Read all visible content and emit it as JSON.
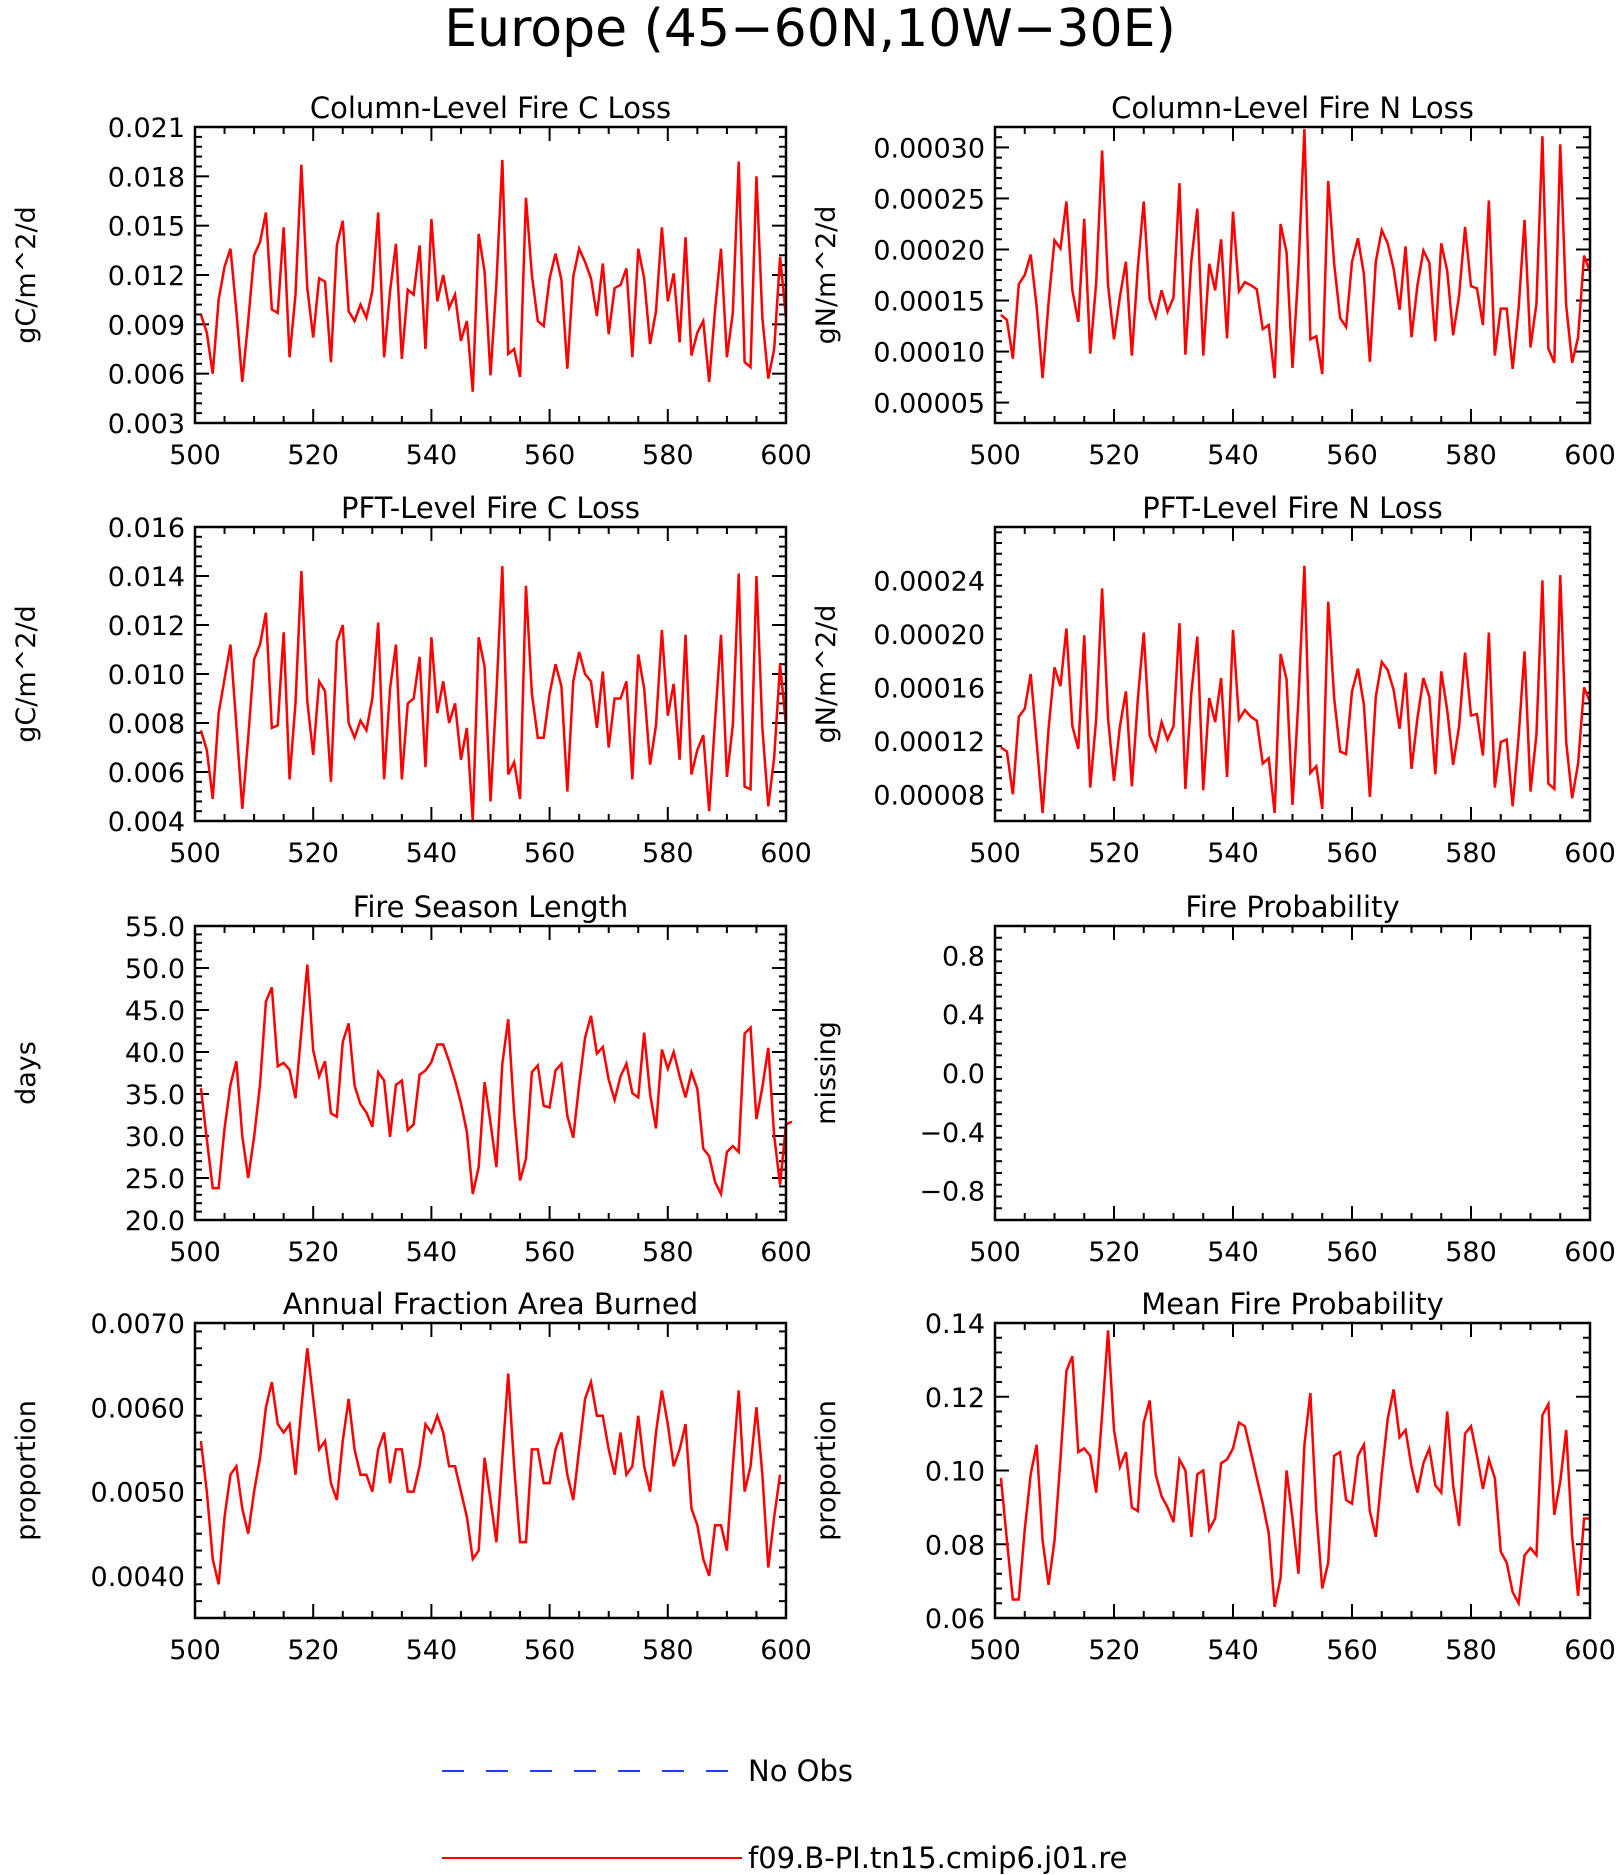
{
  "figure": {
    "title": "Europe (45-60N,10W-30E)"
  },
  "legend": {
    "entries": [
      {
        "label": "No Obs",
        "color": "#1f3fff",
        "style": "dashed"
      },
      {
        "label": "f09.B-PI.tn15.cmip6.j01.re",
        "color": "#ff0000",
        "style": "solid"
      }
    ]
  },
  "chart_data": [
    {
      "type": "line",
      "title": "Column-Level Fire C Loss",
      "ylabel": "gC/m^2/d",
      "xlim": [
        500,
        600
      ],
      "ylim": [
        0.003,
        0.021
      ],
      "xticks": [
        "500",
        "520",
        "540",
        "560",
        "580",
        "600"
      ],
      "yticks": [
        "0.003",
        "0.006",
        "0.009",
        "0.012",
        "0.015",
        "0.018",
        "0.021"
      ],
      "x_start": 501,
      "series": [
        {
          "color": "#ff0000",
          "values": [
            0.0096,
            0.0085,
            0.006,
            0.0105,
            0.0125,
            0.0136,
            0.0098,
            0.0055,
            0.0092,
            0.0132,
            0.014,
            0.0158,
            0.0099,
            0.0097,
            0.0149,
            0.007,
            0.0108,
            0.0187,
            0.0112,
            0.0082,
            0.0118,
            0.0116,
            0.0067,
            0.0138,
            0.0153,
            0.0098,
            0.0092,
            0.0102,
            0.0094,
            0.011,
            0.0158,
            0.007,
            0.011,
            0.0139,
            0.0069,
            0.0111,
            0.0108,
            0.0138,
            0.0075,
            0.0154,
            0.0104,
            0.012,
            0.01,
            0.0108,
            0.008,
            0.0092,
            0.0049,
            0.0145,
            0.0122,
            0.0059,
            0.0115,
            0.019,
            0.0072,
            0.0075,
            0.0058,
            0.0167,
            0.012,
            0.0092,
            0.0089,
            0.0118,
            0.0133,
            0.0117,
            0.0063,
            0.0119,
            0.0136,
            0.0128,
            0.0118,
            0.0095,
            0.0127,
            0.0084,
            0.0112,
            0.0114,
            0.0124,
            0.007,
            0.0136,
            0.0118,
            0.0078,
            0.0098,
            0.0149,
            0.0104,
            0.0121,
            0.0079,
            0.0143,
            0.0071,
            0.0085,
            0.0092,
            0.0055,
            0.0099,
            0.0136,
            0.007,
            0.0097,
            0.0189,
            0.0067,
            0.0064,
            0.018,
            0.0094,
            0.0057,
            0.0075,
            0.0131,
            0.0094
          ]
        }
      ]
    },
    {
      "type": "line",
      "title": "Column-Level Fire N Loss",
      "ylabel": "gN/m^2/d",
      "xlim": [
        500,
        600
      ],
      "ylim": [
        3e-05,
        0.00032
      ],
      "xticks": [
        "500",
        "520",
        "540",
        "560",
        "580",
        "600"
      ],
      "yticks": [
        "0.00005",
        "0.00010",
        "0.00015",
        "0.00020",
        "0.00025",
        "0.00030"
      ],
      "x_start": 501,
      "series": [
        {
          "color": "#ff0000",
          "values": [
            0.000136,
            0.000131,
            9.3e-05,
            0.000166,
            0.000175,
            0.000195,
            0.000144,
            7.4e-05,
            0.000148,
            0.000209,
            0.000201,
            0.000247,
            0.00016,
            0.000129,
            0.00023,
            9.8e-05,
            0.000167,
            0.000297,
            0.000165,
            0.000112,
            0.000154,
            0.000188,
            9.6e-05,
            0.000182,
            0.000247,
            0.000151,
            0.000134,
            0.00016,
            0.000139,
            0.000153,
            0.000265,
            9.7e-05,
            0.000189,
            0.00024,
            9.6e-05,
            0.000186,
            0.00016,
            0.00021,
            0.000113,
            0.000237,
            0.000159,
            0.000168,
            0.000165,
            0.000161,
            0.000122,
            0.000126,
            7.4e-05,
            0.000225,
            0.000197,
            8.4e-05,
            0.000181,
            0.000318,
            0.000112,
            0.000115,
            7.8e-05,
            0.000267,
            0.000186,
            0.000133,
            0.000124,
            0.000188,
            0.000211,
            0.000176,
            9e-05,
            0.000188,
            0.000219,
            0.000206,
            0.000181,
            0.000141,
            0.000203,
            0.000114,
            0.000165,
            0.000199,
            0.000187,
            0.00011,
            0.000206,
            0.000179,
            0.000116,
            0.000155,
            0.000222,
            0.000164,
            0.000162,
            0.000126,
            0.000248,
            9.6e-05,
            0.000142,
            0.000142,
            8.3e-05,
            0.000142,
            0.000229,
            0.000104,
            0.000147,
            0.000311,
            0.000103,
            8.9e-05,
            0.000303,
            0.000145,
            8.9e-05,
            0.000114,
            0.000194,
            0.000178
          ]
        }
      ]
    },
    {
      "type": "line",
      "title": "PFT-Level Fire C Loss",
      "ylabel": "gC/m^2/d",
      "xlim": [
        500,
        600
      ],
      "ylim": [
        0.004,
        0.016
      ],
      "xticks": [
        "500",
        "520",
        "540",
        "560",
        "580",
        "600"
      ],
      "yticks": [
        "0.004",
        "0.006",
        "0.008",
        "0.010",
        "0.012",
        "0.014",
        "0.016"
      ],
      "x_start": 501,
      "series": [
        {
          "color": "#ff0000",
          "values": [
            0.0077,
            0.0069,
            0.0049,
            0.0084,
            0.0098,
            0.0112,
            0.0079,
            0.0045,
            0.0074,
            0.0106,
            0.0112,
            0.0125,
            0.0078,
            0.0079,
            0.0117,
            0.0057,
            0.0088,
            0.0142,
            0.0089,
            0.0067,
            0.0097,
            0.0093,
            0.0056,
            0.0113,
            0.012,
            0.008,
            0.0074,
            0.0081,
            0.0077,
            0.009,
            0.0121,
            0.0057,
            0.0094,
            0.0112,
            0.0057,
            0.0088,
            0.009,
            0.0107,
            0.0062,
            0.0115,
            0.0084,
            0.0097,
            0.008,
            0.0088,
            0.0065,
            0.0078,
            0.004,
            0.0115,
            0.0103,
            0.0048,
            0.0092,
            0.0144,
            0.0059,
            0.0064,
            0.0049,
            0.0136,
            0.0092,
            0.0074,
            0.0074,
            0.0092,
            0.0104,
            0.0095,
            0.0052,
            0.0097,
            0.0109,
            0.01,
            0.0097,
            0.0078,
            0.0101,
            0.007,
            0.009,
            0.009,
            0.0097,
            0.0057,
            0.0108,
            0.0094,
            0.0063,
            0.0079,
            0.0118,
            0.0083,
            0.0096,
            0.0065,
            0.0116,
            0.0059,
            0.0069,
            0.0075,
            0.0044,
            0.0081,
            0.0116,
            0.0058,
            0.0079,
            0.0141,
            0.0054,
            0.0053,
            0.014,
            0.0078,
            0.0046,
            0.0066,
            0.0104,
            0.0079
          ]
        }
      ]
    },
    {
      "type": "line",
      "title": "PFT-Level Fire N Loss",
      "ylabel": "gN/m^2/d",
      "xlim": [
        500,
        600
      ],
      "ylim": [
        6e-05,
        0.00028
      ],
      "xticks": [
        "500",
        "520",
        "540",
        "560",
        "580",
        "600"
      ],
      "yticks": [
        "0.00008",
        "0.00012",
        "0.00016",
        "0.00020",
        "0.00024"
      ],
      "x_start": 501,
      "series": [
        {
          "color": "#ff0000",
          "values": [
            0.000115,
            0.000112,
            8e-05,
            0.000138,
            0.000144,
            0.00017,
            0.000119,
            6.6e-05,
            0.000129,
            0.000175,
            0.000161,
            0.000204,
            0.000131,
            0.000114,
            0.000199,
            8.5e-05,
            0.000136,
            0.000234,
            0.000137,
            9e-05,
            0.000131,
            0.000157,
            8.6e-05,
            0.000151,
            0.000201,
            0.000124,
            0.000113,
            0.000134,
            0.000121,
            0.000131,
            0.000208,
            8.4e-05,
            0.000156,
            0.000198,
            8.3e-05,
            0.000152,
            0.000134,
            0.000167,
            9.3e-05,
            0.000203,
            0.000136,
            0.000143,
            0.000138,
            0.000135,
            0.000103,
            0.000107,
            6.6e-05,
            0.000185,
            0.000166,
            7.2e-05,
            0.000151,
            0.000251,
            9.6e-05,
            0.000101,
            6.9e-05,
            0.000224,
            0.000152,
            0.000112,
            0.00011,
            0.000157,
            0.000174,
            0.000147,
            7.8e-05,
            0.000153,
            0.000179,
            0.000173,
            0.000158,
            0.000129,
            0.000171,
            9.9e-05,
            0.000137,
            0.000167,
            0.000153,
            9.5e-05,
            0.000172,
            0.000143,
            0.000102,
            0.000131,
            0.000186,
            0.000139,
            0.00014,
            0.000109,
            0.000201,
            8.5e-05,
            0.000119,
            0.000121,
            7.1e-05,
            0.000123,
            0.000187,
            8.2e-05,
            0.000125,
            0.00024,
            8.8e-05,
            8.4e-05,
            0.000244,
            0.000119,
            7.7e-05,
            0.000103,
            0.00016,
            0.000149
          ]
        }
      ]
    },
    {
      "type": "line",
      "title": "Fire Season Length",
      "ylabel": "days",
      "xlim": [
        500,
        600
      ],
      "ylim": [
        20,
        55
      ],
      "xticks": [
        "500",
        "520",
        "540",
        "560",
        "580",
        "600"
      ],
      "yticks": [
        "20.0",
        "25.0",
        "30.0",
        "35.0",
        "40.0",
        "45.0",
        "50.0",
        "55.0"
      ],
      "x_start": 501,
      "series": [
        {
          "color": "#ff0000",
          "values": [
            35.7,
            29.6,
            23.8,
            23.8,
            30.9,
            36.1,
            38.9,
            30.0,
            25.0,
            29.9,
            36.1,
            46.0,
            47.7,
            38.3,
            38.7,
            37.9,
            34.5,
            42.5,
            50.4,
            40.2,
            37.1,
            38.9,
            32.7,
            32.3,
            41.2,
            43.4,
            36.0,
            33.8,
            32.8,
            31.1,
            37.6,
            36.6,
            29.9,
            36.1,
            36.6,
            30.7,
            31.4,
            37.3,
            37.8,
            38.8,
            40.9,
            40.9,
            38.9,
            36.6,
            33.9,
            30.5,
            23.1,
            26.3,
            36.4,
            31.6,
            26.3,
            38.6,
            43.9,
            32.7,
            24.7,
            27.3,
            37.6,
            38.4,
            33.6,
            33.4,
            37.8,
            38.6,
            32.4,
            29.8,
            36.1,
            41.7,
            44.3,
            39.8,
            40.6,
            36.7,
            34.3,
            37.1,
            38.6,
            35.1,
            34.6,
            42.3,
            35.0,
            30.9,
            40.3,
            38.0,
            40.0,
            37.1,
            34.6,
            37.6,
            35.6,
            28.5,
            27.6,
            24.5,
            23.1,
            28.1,
            28.8,
            28.1,
            42.2,
            42.9,
            32.0,
            35.8,
            40.5,
            30.0,
            24.2,
            31.4,
            31.7
          ]
        }
      ]
    },
    {
      "type": "line",
      "title": "Fire Probability",
      "ylabel": "missing",
      "xlim": [
        500,
        600
      ],
      "ylim": [
        -1.0,
        1.0
      ],
      "xticks": [
        "500",
        "520",
        "540",
        "560",
        "580",
        "600"
      ],
      "yticks": [
        "-0.8",
        "-0.4",
        "0.0",
        "0.4",
        "0.8"
      ],
      "series": []
    },
    {
      "type": "line",
      "title": "Annual Fraction Area Burned",
      "ylabel": "proportion",
      "xlim": [
        500,
        600
      ],
      "ylim": [
        0.0035,
        0.007
      ],
      "xticks": [
        "500",
        "520",
        "540",
        "560",
        "580",
        "600"
      ],
      "yticks": [
        "0.0040",
        "0.0050",
        "0.0060",
        "0.0070"
      ],
      "x_start": 501,
      "series": [
        {
          "color": "#ff0000",
          "values": [
            0.0056,
            0.005,
            0.0042,
            0.0039,
            0.0047,
            0.0052,
            0.0053,
            0.0048,
            0.0045,
            0.005,
            0.0054,
            0.006,
            0.0063,
            0.0058,
            0.0057,
            0.0058,
            0.0052,
            0.006,
            0.0067,
            0.0061,
            0.0055,
            0.0056,
            0.0051,
            0.0049,
            0.0056,
            0.0061,
            0.0055,
            0.0052,
            0.0052,
            0.005,
            0.0055,
            0.0057,
            0.0051,
            0.0055,
            0.0055,
            0.005,
            0.005,
            0.0053,
            0.0058,
            0.0057,
            0.0059,
            0.0057,
            0.0053,
            0.0053,
            0.005,
            0.0047,
            0.0042,
            0.0043,
            0.0054,
            0.0049,
            0.0044,
            0.0054,
            0.0064,
            0.0053,
            0.0044,
            0.0044,
            0.0055,
            0.0055,
            0.0051,
            0.0051,
            0.0055,
            0.0057,
            0.0052,
            0.0049,
            0.0055,
            0.0061,
            0.0063,
            0.0059,
            0.0059,
            0.0055,
            0.0052,
            0.0057,
            0.0052,
            0.0053,
            0.0059,
            0.0053,
            0.005,
            0.0057,
            0.0062,
            0.0058,
            0.0053,
            0.0055,
            0.0058,
            0.0048,
            0.0046,
            0.0042,
            0.004,
            0.0046,
            0.0046,
            0.0043,
            0.0053,
            0.0062,
            0.005,
            0.0053,
            0.006,
            0.0052,
            0.0041,
            0.0047,
            0.0052
          ]
        }
      ]
    },
    {
      "type": "line",
      "title": "Mean Fire Probability",
      "ylabel": "proportion",
      "xlim": [
        500,
        600
      ],
      "ylim": [
        0.06,
        0.14
      ],
      "xticks": [
        "500",
        "520",
        "540",
        "560",
        "580",
        "600"
      ],
      "yticks": [
        "0.06",
        "0.08",
        "0.10",
        "0.12",
        "0.14"
      ],
      "x_start": 501,
      "series": [
        {
          "color": "#ff0000",
          "values": [
            0.098,
            0.081,
            0.065,
            0.065,
            0.084,
            0.099,
            0.107,
            0.081,
            0.069,
            0.081,
            0.103,
            0.127,
            0.131,
            0.105,
            0.106,
            0.104,
            0.094,
            0.115,
            0.138,
            0.111,
            0.101,
            0.105,
            0.09,
            0.089,
            0.113,
            0.119,
            0.099,
            0.093,
            0.09,
            0.086,
            0.103,
            0.1,
            0.082,
            0.099,
            0.1,
            0.084,
            0.087,
            0.102,
            0.103,
            0.106,
            0.113,
            0.112,
            0.105,
            0.098,
            0.091,
            0.083,
            0.063,
            0.071,
            0.1,
            0.087,
            0.072,
            0.107,
            0.121,
            0.089,
            0.068,
            0.075,
            0.104,
            0.105,
            0.092,
            0.091,
            0.104,
            0.107,
            0.089,
            0.082,
            0.099,
            0.114,
            0.122,
            0.109,
            0.111,
            0.101,
            0.094,
            0.102,
            0.106,
            0.096,
            0.094,
            0.116,
            0.096,
            0.085,
            0.11,
            0.112,
            0.104,
            0.095,
            0.103,
            0.098,
            0.078,
            0.075,
            0.067,
            0.064,
            0.077,
            0.079,
            0.077,
            0.115,
            0.118,
            0.088,
            0.097,
            0.111,
            0.082,
            0.066,
            0.087,
            0.087
          ]
        }
      ]
    }
  ]
}
